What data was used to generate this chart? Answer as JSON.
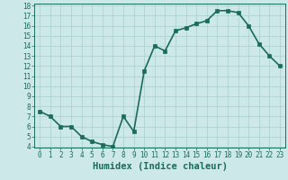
{
  "x": [
    0,
    1,
    2,
    3,
    4,
    5,
    6,
    7,
    8,
    9,
    10,
    11,
    12,
    13,
    14,
    15,
    16,
    17,
    18,
    19,
    20,
    21,
    22,
    23
  ],
  "y": [
    7.5,
    7.0,
    6.0,
    6.0,
    5.0,
    4.5,
    4.2,
    4.0,
    7.0,
    5.5,
    11.5,
    14.0,
    13.5,
    15.5,
    15.8,
    16.2,
    16.5,
    17.5,
    17.5,
    17.3,
    16.0,
    14.2,
    13.0,
    12.0
  ],
  "xlabel": "Humidex (Indice chaleur)",
  "ylim": [
    4,
    18
  ],
  "xlim": [
    -0.5,
    23.5
  ],
  "yticks": [
    4,
    5,
    6,
    7,
    8,
    9,
    10,
    11,
    12,
    13,
    14,
    15,
    16,
    17,
    18
  ],
  "xticks": [
    0,
    1,
    2,
    3,
    4,
    5,
    6,
    7,
    8,
    9,
    10,
    11,
    12,
    13,
    14,
    15,
    16,
    17,
    18,
    19,
    20,
    21,
    22,
    23
  ],
  "line_color": "#1a6b5a",
  "marker_color": "#1a6b5a",
  "bg_color": "#cce8e8",
  "grid_color": "#a8cfcf",
  "axes_color": "#1a6b5a",
  "tick_label_color": "#1a6b5a",
  "xlabel_color": "#1a6b5a",
  "xlabel_fontsize": 7.5,
  "tick_fontsize": 5.5,
  "line_width": 1.2,
  "marker_size": 2.5
}
